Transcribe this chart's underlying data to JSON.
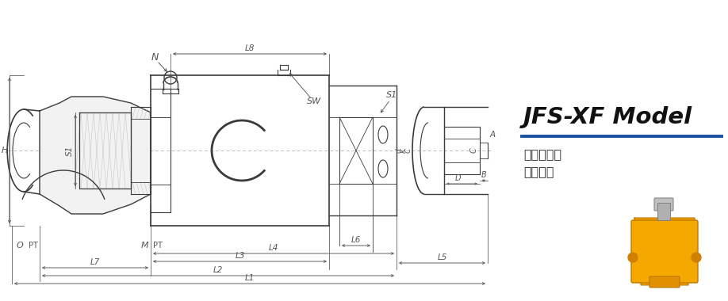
{
  "bg_color": "#ffffff",
  "lc": "#3a3a3a",
  "dc": "#555555",
  "blue_color": "#1a50a0",
  "title": "JFS-XF Model",
  "subtitle1": "内管固定式",
  "subtitle2": "法兰连接",
  "title_color": "#111111",
  "gray_fill": "#e8e8e8",
  "hatch_color": "#aaaaaa",
  "dim_arrow_scale": 5
}
